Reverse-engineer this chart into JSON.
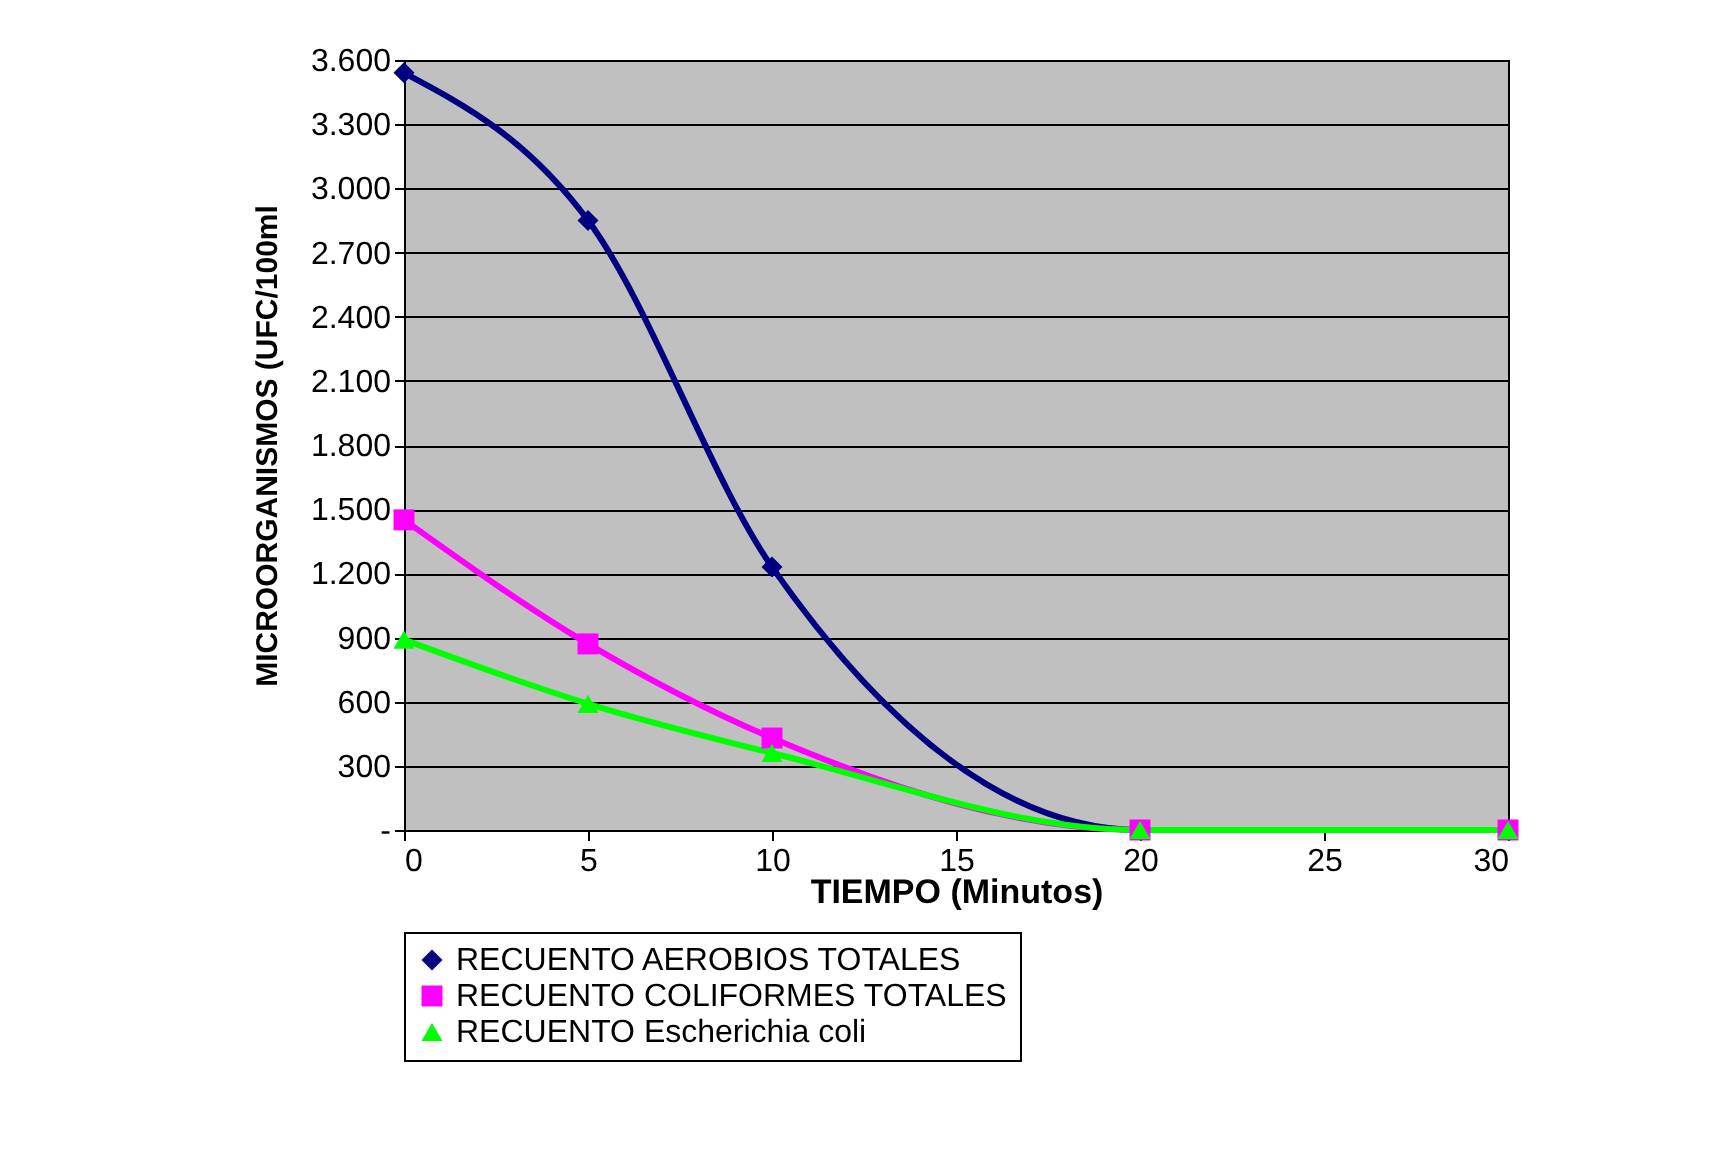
{
  "chart_data": {
    "type": "line",
    "xlabel": "TIEMPO (Minutos)",
    "ylabel": "MICROORGANISMOS (UFC/100ml",
    "x": [
      0,
      5,
      10,
      20,
      30
    ],
    "series": [
      {
        "name": "RECUENTO AEROBIOS TOTALES",
        "color": "#000080",
        "marker": "diamond",
        "values": [
          3540,
          2850,
          1230,
          0,
          0
        ]
      },
      {
        "name": "RECUENTO COLIFORMES TOTALES",
        "color": "#ff00ff",
        "marker": "square",
        "values": [
          1450,
          870,
          430,
          0,
          0
        ]
      },
      {
        "name": "RECUENTO Escherichia coli",
        "color": "#00ff00",
        "marker": "triangle",
        "values": [
          890,
          590,
          360,
          0,
          0
        ]
      }
    ],
    "xlim": [
      0,
      30
    ],
    "xticks": [
      0,
      5,
      10,
      15,
      20,
      25,
      30
    ],
    "ylim": [
      0,
      3600
    ],
    "yticks": [
      {
        "value": 0,
        "label": "-"
      },
      300,
      600,
      900,
      {
        "value": 1200,
        "label": "1.200"
      },
      {
        "value": 1500,
        "label": "1.500"
      },
      {
        "value": 1800,
        "label": "1.800"
      },
      {
        "value": 2100,
        "label": "2.100"
      },
      {
        "value": 2400,
        "label": "2.400"
      },
      {
        "value": 2700,
        "label": "2.700"
      },
      {
        "value": 3000,
        "label": "3.000"
      },
      {
        "value": 3300,
        "label": "3.300"
      },
      {
        "value": 3600,
        "label": "3.600"
      }
    ],
    "grid": "y",
    "legend": "bottom",
    "line_style": "solid"
  }
}
